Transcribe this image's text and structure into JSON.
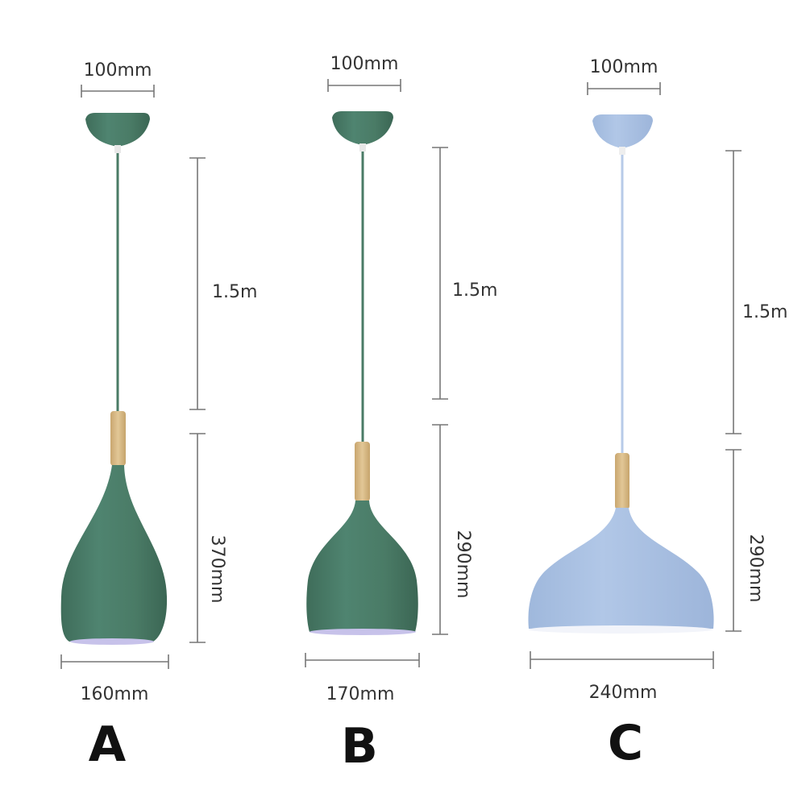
{
  "colors": {
    "green": "#4a7b66",
    "blue": "#a7bfe2",
    "wood": "#d7b987",
    "inner_green": "#c7c2ea",
    "inner_blue": "#f2f4fa"
  },
  "lamps": [
    {
      "letter": "A",
      "canopy_width": "100mm",
      "cord_length": "1.5m",
      "shade_height": "370mm",
      "shade_width": "160mm",
      "color": "green",
      "shape": "teardrop"
    },
    {
      "letter": "B",
      "canopy_width": "100mm",
      "cord_length": "1.5m",
      "shade_height": "290mm",
      "shade_width": "170mm",
      "color": "green",
      "shape": "bell"
    },
    {
      "letter": "C",
      "canopy_width": "100mm",
      "cord_length": "1.5m",
      "shade_height": "290mm",
      "shade_width": "240mm",
      "color": "blue",
      "shape": "dome"
    }
  ]
}
